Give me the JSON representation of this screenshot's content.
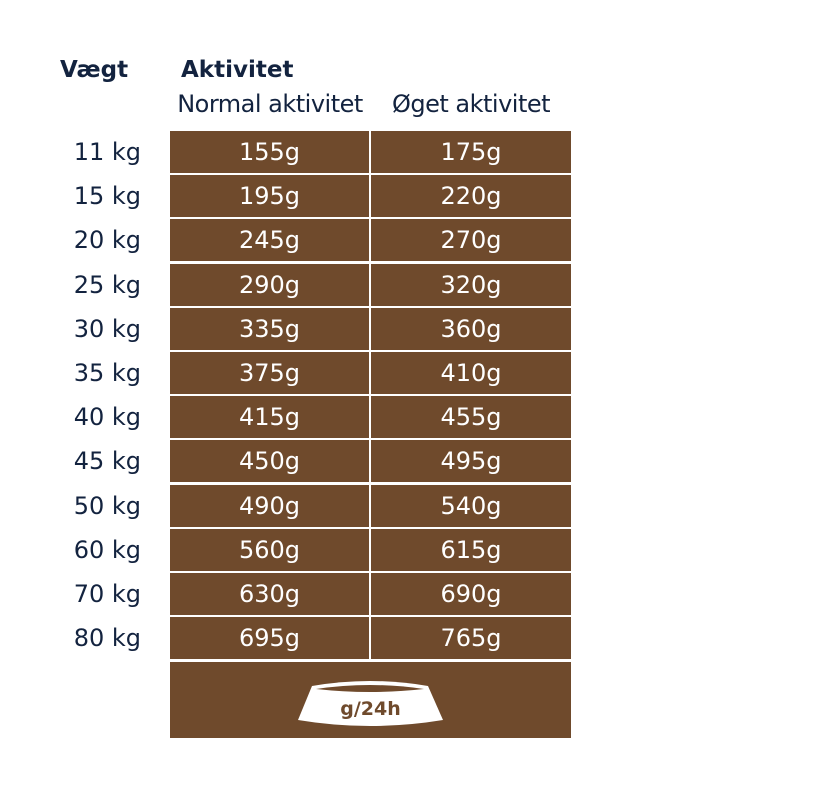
{
  "headers": {
    "weight": "Vægt",
    "activity": "Aktivitet",
    "normal": "Normal aktivitet",
    "increased": "Øget aktivitet"
  },
  "rows": [
    {
      "weight": "11 kg",
      "normal": "155g",
      "increased": "175g"
    },
    {
      "weight": "15 kg",
      "normal": "195g",
      "increased": "220g"
    },
    {
      "weight": "20 kg",
      "normal": "245g",
      "increased": "270g"
    },
    {
      "weight": "25 kg",
      "normal": "290g",
      "increased": "320g"
    },
    {
      "weight": "30 kg",
      "normal": "335g",
      "increased": "360g"
    },
    {
      "weight": "35 kg",
      "normal": "375g",
      "increased": "410g"
    },
    {
      "weight": "40 kg",
      "normal": "415g",
      "increased": "455g"
    },
    {
      "weight": "45 kg",
      "normal": "450g",
      "increased": "495g"
    },
    {
      "weight": "50 kg",
      "normal": "490g",
      "increased": "540g"
    },
    {
      "weight": "60 kg",
      "normal": "560g",
      "increased": "615g"
    },
    {
      "weight": "70 kg",
      "normal": "630g",
      "increased": "690g"
    },
    {
      "weight": "80 kg",
      "normal": "695g",
      "increased": "765g"
    }
  ],
  "footer": {
    "icon": "bowl-icon",
    "label": "g/24h"
  },
  "colors": {
    "cell": "#6f4a2c",
    "text": "#13233f"
  }
}
